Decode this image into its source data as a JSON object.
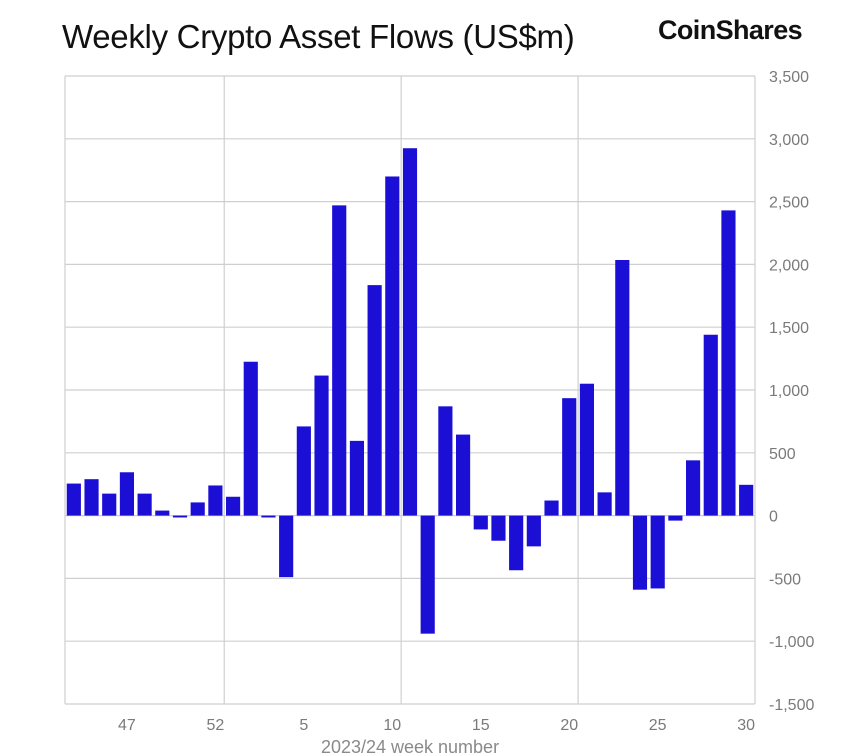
{
  "header": {
    "title": "Weekly Crypto Asset Flows (US$m)",
    "brand": "CoinShares"
  },
  "chart_data": {
    "type": "bar",
    "title": "Weekly Crypto Asset Flows (US$m)",
    "xlabel": "2023/24 week number",
    "ylabel": "",
    "ylim": [
      -1500,
      3500
    ],
    "yticks": [
      3500,
      3000,
      2500,
      2000,
      1500,
      1000,
      500,
      0,
      -500,
      -1000,
      -1500
    ],
    "ytick_labels": [
      "3,500",
      "3,000",
      "2,500",
      "2,000",
      "1,500",
      "1,000",
      "500",
      "0",
      "-500",
      "-1,000",
      "-1,500"
    ],
    "xtick_labels": [
      "47",
      "52",
      "5",
      "10",
      "15",
      "20",
      "25",
      "30"
    ],
    "xtick_weeks": [
      47,
      52,
      5,
      10,
      15,
      20,
      25,
      30
    ],
    "grid": true,
    "y_axis_side": "right",
    "bar_color": "#1b0fd6",
    "categories": [
      "44",
      "45",
      "46",
      "47",
      "48",
      "49",
      "50",
      "51",
      "52",
      "1",
      "2",
      "3",
      "4",
      "5",
      "6",
      "7",
      "8",
      "9",
      "10",
      "11",
      "12",
      "13",
      "14",
      "15",
      "16",
      "17",
      "18",
      "19",
      "20",
      "21",
      "22",
      "23",
      "24",
      "25",
      "26",
      "27",
      "28",
      "29",
      "30"
    ],
    "values": [
      255,
      290,
      175,
      345,
      175,
      40,
      -15,
      105,
      240,
      150,
      1225,
      -15,
      -490,
      710,
      1115,
      2470,
      595,
      1835,
      2700,
      2925,
      -940,
      870,
      645,
      -110,
      -200,
      -435,
      -245,
      120,
      935,
      1050,
      185,
      2035,
      -590,
      -580,
      -40,
      440,
      1440,
      2430,
      245
    ]
  }
}
